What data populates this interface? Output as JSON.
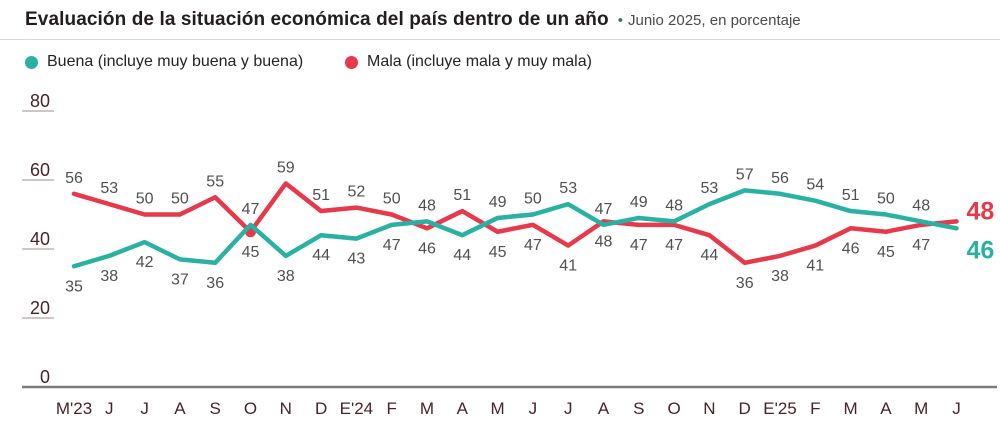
{
  "header": {
    "title": "Evaluación de la situación económica del país dentro de un año",
    "separator": "•",
    "subtitle": "Junio 2025, en porcentaje"
  },
  "legend": [
    {
      "label": "Buena (incluye muy buena y buena)",
      "color": "#29b2a3"
    },
    {
      "label": "Mala (incluye mala y muy mala)",
      "color": "#e6394b"
    }
  ],
  "chart_data": {
    "type": "line",
    "categories": [
      "M'23",
      "J",
      "J",
      "A",
      "S",
      "O",
      "N",
      "D",
      "E'24",
      "F",
      "M",
      "A",
      "M",
      "J",
      "J",
      "A",
      "S",
      "O",
      "N",
      "D",
      "E'25",
      "F",
      "M",
      "A",
      "M",
      "J"
    ],
    "series": [
      {
        "name": "Buena (incluye muy buena y buena)",
        "color": "#29b2a3",
        "values": [
          35,
          38,
          42,
          37,
          36,
          47,
          38,
          44,
          43,
          47,
          48,
          44,
          49,
          50,
          53,
          47,
          49,
          48,
          53,
          57,
          56,
          54,
          51,
          50,
          48,
          46
        ]
      },
      {
        "name": "Mala (incluye mala y muy mala)",
        "color": "#e6394b",
        "values": [
          56,
          53,
          50,
          50,
          55,
          45,
          59,
          51,
          52,
          50,
          46,
          51,
          45,
          47,
          41,
          48,
          47,
          47,
          44,
          36,
          38,
          41,
          46,
          45,
          47,
          48
        ]
      }
    ],
    "yticks": [
      80,
      60,
      40,
      20,
      0
    ],
    "ylim": [
      0,
      80
    ],
    "grid": "short-ticks-left",
    "legend_position": "top",
    "dot_marker": {
      "series": "Mala (incluye mala y muy mala)",
      "category": "O",
      "index": 5
    },
    "final_labels": {
      "buena": "46",
      "mala": "48"
    },
    "value_label_color": "#4f5052",
    "axis_label_color": "#45242b",
    "baseline_color": "#7c7c7c",
    "tick_color": "#cfc6c6"
  }
}
